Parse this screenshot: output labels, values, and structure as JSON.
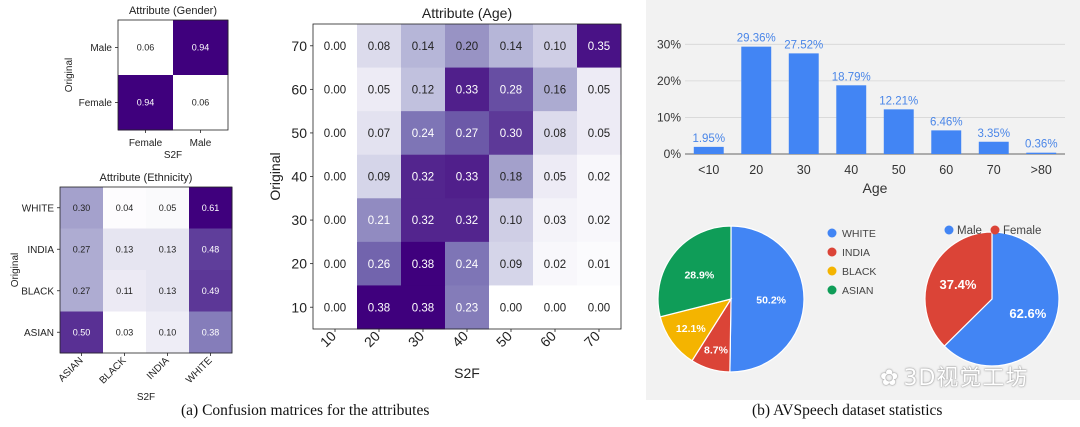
{
  "captions": {
    "left": "(a) Confusion matrices for the attributes",
    "right": "(b) AVSpeech dataset statistics"
  },
  "watermark": "3D视觉工坊",
  "chart_data": [
    {
      "type": "heatmap",
      "id": "gender",
      "title": "Attribute (Gender)",
      "xlabel": "S2F",
      "ylabel": "Original",
      "rows": [
        "Male",
        "Female"
      ],
      "cols": [
        "Female",
        "Male"
      ],
      "values": [
        [
          0.06,
          0.94
        ],
        [
          0.94,
          0.06
        ]
      ],
      "labels": [
        [
          "0.06",
          "0.94"
        ],
        [
          "0.94",
          "0.06"
        ]
      ],
      "colormap": "Purples"
    },
    {
      "type": "heatmap",
      "id": "ethnicity",
      "title": "Attribute (Ethnicity)",
      "xlabel": "S2F",
      "ylabel": "Original",
      "rows": [
        "WHITE",
        "INDIA",
        "BLACK",
        "ASIAN"
      ],
      "cols": [
        "ASIAN",
        "BLACK",
        "INDIA",
        "WHITE"
      ],
      "values": [
        [
          0.3,
          0.04,
          0.05,
          0.61
        ],
        [
          0.27,
          0.13,
          0.13,
          0.48
        ],
        [
          0.27,
          0.11,
          0.13,
          0.49
        ],
        [
          0.5,
          0.03,
          0.1,
          0.38
        ]
      ],
      "labels": [
        [
          "0.30",
          "0.04",
          "0.05",
          "0.61"
        ],
        [
          "0.27",
          "0.13",
          "0.13",
          "0.48"
        ],
        [
          "0.27",
          "0.11",
          "0.13",
          "0.49"
        ],
        [
          "0.50",
          "0.03",
          "0.10",
          "0.38"
        ]
      ],
      "colormap": "Purples"
    },
    {
      "type": "heatmap",
      "id": "age",
      "title": "Attribute (Age)",
      "xlabel": "S2F",
      "ylabel": "Original",
      "rows": [
        "70",
        "60",
        "50",
        "40",
        "30",
        "20",
        "10"
      ],
      "cols": [
        "10",
        "20",
        "30",
        "40",
        "50",
        "60",
        "70"
      ],
      "values": [
        [
          0.0,
          0.08,
          0.14,
          0.2,
          0.14,
          0.1,
          0.35
        ],
        [
          0.0,
          0.05,
          0.12,
          0.33,
          0.28,
          0.16,
          0.05
        ],
        [
          0.0,
          0.07,
          0.24,
          0.27,
          0.3,
          0.08,
          0.05
        ],
        [
          0.0,
          0.09,
          0.32,
          0.33,
          0.18,
          0.05,
          0.02
        ],
        [
          0.0,
          0.21,
          0.32,
          0.32,
          0.1,
          0.03,
          0.02
        ],
        [
          0.0,
          0.26,
          0.38,
          0.24,
          0.09,
          0.02,
          0.01
        ],
        [
          0.0,
          0.38,
          0.38,
          0.23,
          0.0,
          0.0,
          0.0
        ]
      ],
      "labels": [
        [
          "0.00",
          "0.08",
          "0.14",
          "0.20",
          "0.14",
          "0.10",
          "0.35"
        ],
        [
          "0.00",
          "0.05",
          "0.12",
          "0.33",
          "0.28",
          "0.16",
          "0.05"
        ],
        [
          "0.00",
          "0.07",
          "0.24",
          "0.27",
          "0.30",
          "0.08",
          "0.05"
        ],
        [
          "0.00",
          "0.09",
          "0.32",
          "0.33",
          "0.18",
          "0.05",
          "0.02"
        ],
        [
          "0.00",
          "0.21",
          "0.32",
          "0.32",
          "0.10",
          "0.03",
          "0.02"
        ],
        [
          "0.00",
          "0.26",
          "0.38",
          "0.24",
          "0.09",
          "0.02",
          "0.01"
        ],
        [
          "0.00",
          "0.38",
          "0.38",
          "0.23",
          "0.00",
          "0.00",
          "0.00"
        ]
      ],
      "colormap": "Purples"
    },
    {
      "type": "bar",
      "id": "age-dist",
      "categories": [
        "<10",
        "20",
        "30",
        "40",
        "50",
        "60",
        "70",
        ">80"
      ],
      "values": [
        1.95,
        29.36,
        27.52,
        18.79,
        12.21,
        6.46,
        3.35,
        0.36
      ],
      "data_labels": [
        "1.95%",
        "29.36%",
        "27.52%",
        "18.79%",
        "12.21%",
        "6.46%",
        "3.35%",
        "0.36%"
      ],
      "xlabel": "Age",
      "ylabel": "",
      "yticks": [
        "0%",
        "10%",
        "20%",
        "30%"
      ],
      "ylim": [
        0,
        32
      ],
      "color": "#4285f4",
      "label_color": "#4a86e8"
    },
    {
      "type": "pie",
      "id": "ethnicity-dist",
      "labels": [
        "WHITE",
        "INDIA",
        "BLACK",
        "ASIAN"
      ],
      "values": [
        50.2,
        8.7,
        12.1,
        28.9
      ],
      "slice_labels": [
        "50.2%",
        "8.7%",
        "12.1%",
        "28.9%"
      ],
      "colors": [
        "#4285f4",
        "#db4437",
        "#f4b400",
        "#0f9d58"
      ],
      "legend_position": "left-top",
      "start": "top",
      "direction": "clockwise"
    },
    {
      "type": "pie",
      "id": "gender-dist",
      "labels": [
        "Male",
        "Female"
      ],
      "values": [
        62.6,
        37.4
      ],
      "slice_labels": [
        "62.6%",
        "37.4%"
      ],
      "colors": [
        "#4285f4",
        "#db4437"
      ],
      "legend_position": "top",
      "start": "top",
      "direction": "clockwise"
    }
  ]
}
